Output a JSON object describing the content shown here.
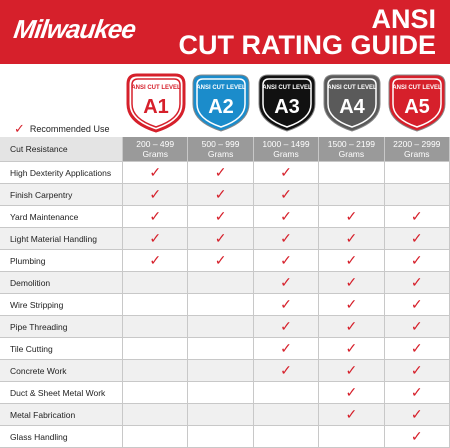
{
  "header": {
    "brand": "Milwaukee",
    "title_line1": "ANSI",
    "title_line2": "CUT RATING GUIDE"
  },
  "legend": "Recommended Use",
  "levels": [
    {
      "caption": "ANSI CUT LEVEL",
      "code": "A1",
      "color": "#d6202b",
      "range": "200 – 499",
      "unit": "Grams"
    },
    {
      "caption": "ANSI CUT LEVEL",
      "code": "A2",
      "color": "#1b8ccb",
      "range": "500 – 999",
      "unit": "Grams"
    },
    {
      "caption": "ANSI CUT LEVEL",
      "code": "A3",
      "color": "#111111",
      "range": "1000 – 1499",
      "unit": "Grams"
    },
    {
      "caption": "ANSI CUT LEVEL",
      "code": "A4",
      "color": "#5a5a5a",
      "range": "1500 – 2199",
      "unit": "Grams"
    },
    {
      "caption": "ANSI CUT LEVEL",
      "code": "A5",
      "color": "#d6202b",
      "range": "2200 – 2999",
      "unit": "Grams"
    }
  ],
  "table": {
    "header": "Cut Resistance",
    "rows": [
      {
        "label": "High Dexterity Applications",
        "checks": [
          true,
          true,
          true,
          false,
          false
        ]
      },
      {
        "label": "Finish Carpentry",
        "checks": [
          true,
          true,
          true,
          false,
          false
        ]
      },
      {
        "label": "Yard Maintenance",
        "checks": [
          true,
          true,
          true,
          true,
          true
        ]
      },
      {
        "label": "Light Material Handling",
        "checks": [
          true,
          true,
          true,
          true,
          true
        ]
      },
      {
        "label": "Plumbing",
        "checks": [
          true,
          true,
          true,
          true,
          true
        ]
      },
      {
        "label": "Demolition",
        "checks": [
          false,
          false,
          true,
          true,
          true
        ]
      },
      {
        "label": "Wire Stripping",
        "checks": [
          false,
          false,
          true,
          true,
          true
        ]
      },
      {
        "label": "Pipe Threading",
        "checks": [
          false,
          false,
          true,
          true,
          true
        ]
      },
      {
        "label": "Tile Cutting",
        "checks": [
          false,
          false,
          true,
          true,
          true
        ]
      },
      {
        "label": "Concrete Work",
        "checks": [
          false,
          false,
          true,
          true,
          true
        ]
      },
      {
        "label": "Duct & Sheet Metal Work",
        "checks": [
          false,
          false,
          false,
          true,
          true
        ]
      },
      {
        "label": "Metal Fabrication",
        "checks": [
          false,
          false,
          false,
          true,
          true
        ]
      },
      {
        "label": "Glass Handling",
        "checks": [
          false,
          false,
          false,
          false,
          true
        ]
      }
    ]
  }
}
